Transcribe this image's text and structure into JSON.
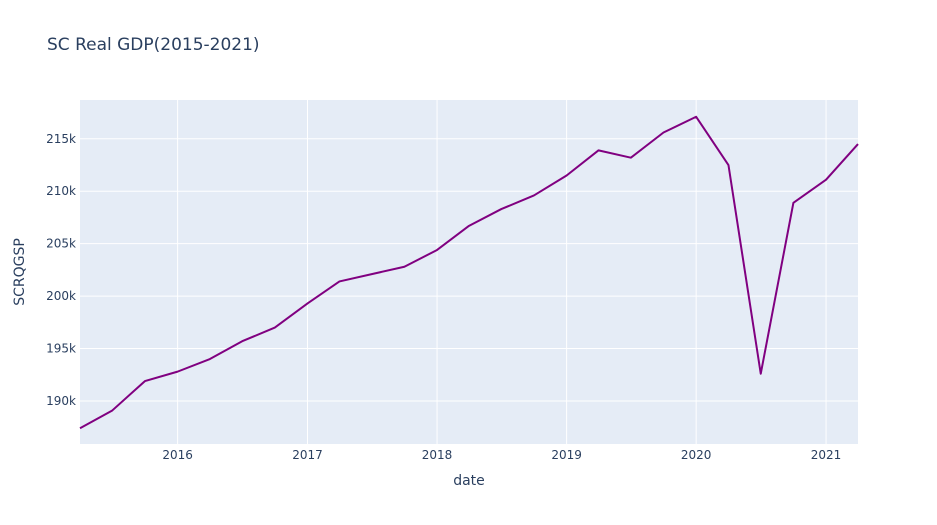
{
  "chart_data": {
    "type": "line",
    "title": "SC Real GDP(2015-2021)",
    "xlabel": "date",
    "ylabel": "SCRQGSP",
    "x_tick_labels": [
      "2016",
      "2017",
      "2018",
      "2019",
      "2020",
      "2021"
    ],
    "y_tick_labels": [
      "190k",
      "195k",
      "200k",
      "205k",
      "210k",
      "215k"
    ],
    "y_tick_values": [
      190000,
      195000,
      200000,
      205000,
      210000,
      215000
    ],
    "xlim": [
      "2015-04-01",
      "2021-04-01"
    ],
    "ylim": [
      185900,
      218700
    ],
    "grid": true,
    "series": [
      {
        "color": "#800080",
        "x": [
          "2015-04-01",
          "2015-07-01",
          "2015-10-01",
          "2016-01-01",
          "2016-04-01",
          "2016-07-01",
          "2016-10-01",
          "2017-01-01",
          "2017-04-01",
          "2017-07-01",
          "2017-10-01",
          "2018-01-01",
          "2018-04-01",
          "2018-07-01",
          "2018-10-01",
          "2019-01-01",
          "2019-04-01",
          "2019-07-01",
          "2019-10-01",
          "2020-01-01",
          "2020-04-01",
          "2020-07-01",
          "2020-10-01",
          "2021-01-01",
          "2021-04-01"
        ],
        "values": [
          187400,
          189100,
          191900,
          192800,
          194000,
          195700,
          197000,
          199300,
          201400,
          202100,
          202800,
          204400,
          206700,
          208300,
          209600,
          211500,
          213900,
          213200,
          215600,
          217100,
          212500,
          192600,
          208900,
          211100,
          214500
        ]
      }
    ]
  },
  "colors": {
    "plot_background": "#e5ecf6",
    "grid": "#ffffff",
    "text": "#2a3f5f",
    "line": "#800080"
  }
}
